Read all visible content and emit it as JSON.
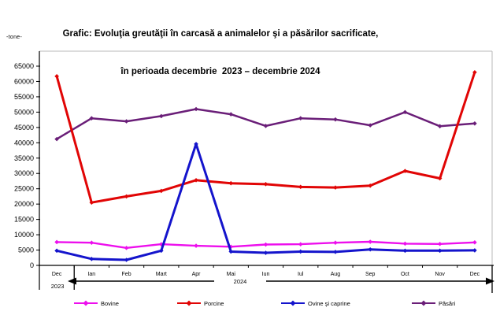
{
  "title": {
    "line1": "Grafic: Evoluţia greutăţii în carcasă a animalelor şi a păsărilor sacrificate,",
    "line2": "în perioada decembrie  2023 – decembrie 2024"
  },
  "axes": {
    "unit_label": "-tone-",
    "y_tick_labels": [
      "0",
      "5000",
      "10000",
      "15000",
      "20000",
      "25000",
      "30000",
      "35000",
      "40000",
      "45000",
      "50000",
      "55000",
      "60000",
      "65000"
    ],
    "year_left": "2023",
    "year_right": "2024"
  },
  "chart_data": {
    "type": "line",
    "title": "Evoluţia greutăţii în carcasă a animalelor şi a păsărilor sacrificate, decembrie 2023 – decembrie 2024",
    "ylabel": "tone",
    "categories": [
      "Dec",
      "Ian",
      "Feb",
      "Mart",
      "Apr",
      "Mai",
      "Iun",
      "Iul",
      "Aug",
      "Sep",
      "Oct",
      "Nov",
      "Dec"
    ],
    "series": [
      {
        "name": "Bovine",
        "color": "#ED0FED",
        "values": [
          7600,
          7400,
          5700,
          6900,
          6400,
          6100,
          6800,
          6900,
          7400,
          7700,
          7100,
          7000,
          7500
        ]
      },
      {
        "name": "Porcine",
        "color": "#E10505",
        "values": [
          61700,
          20500,
          22500,
          24300,
          27800,
          26800,
          26500,
          25600,
          25400,
          26000,
          30800,
          28400,
          63000
        ]
      },
      {
        "name": "Ovine şi caprine",
        "color": "#1414CC",
        "values": [
          4800,
          2100,
          1800,
          4800,
          39600,
          4500,
          4100,
          4500,
          4400,
          5200,
          4800,
          4800,
          4900
        ]
      },
      {
        "name": "Păsări",
        "color": "#6A1E78",
        "values": [
          41200,
          48000,
          47000,
          48700,
          51000,
          49300,
          45500,
          48000,
          47600,
          45700,
          50000,
          45400,
          46300
        ]
      }
    ],
    "ylim": [
      0,
      65000
    ],
    "y_step": 5000,
    "grid": false,
    "legend_position": "bottom"
  },
  "legend_layout": {
    "lefts": [
      94,
      225,
      357,
      523
    ]
  }
}
